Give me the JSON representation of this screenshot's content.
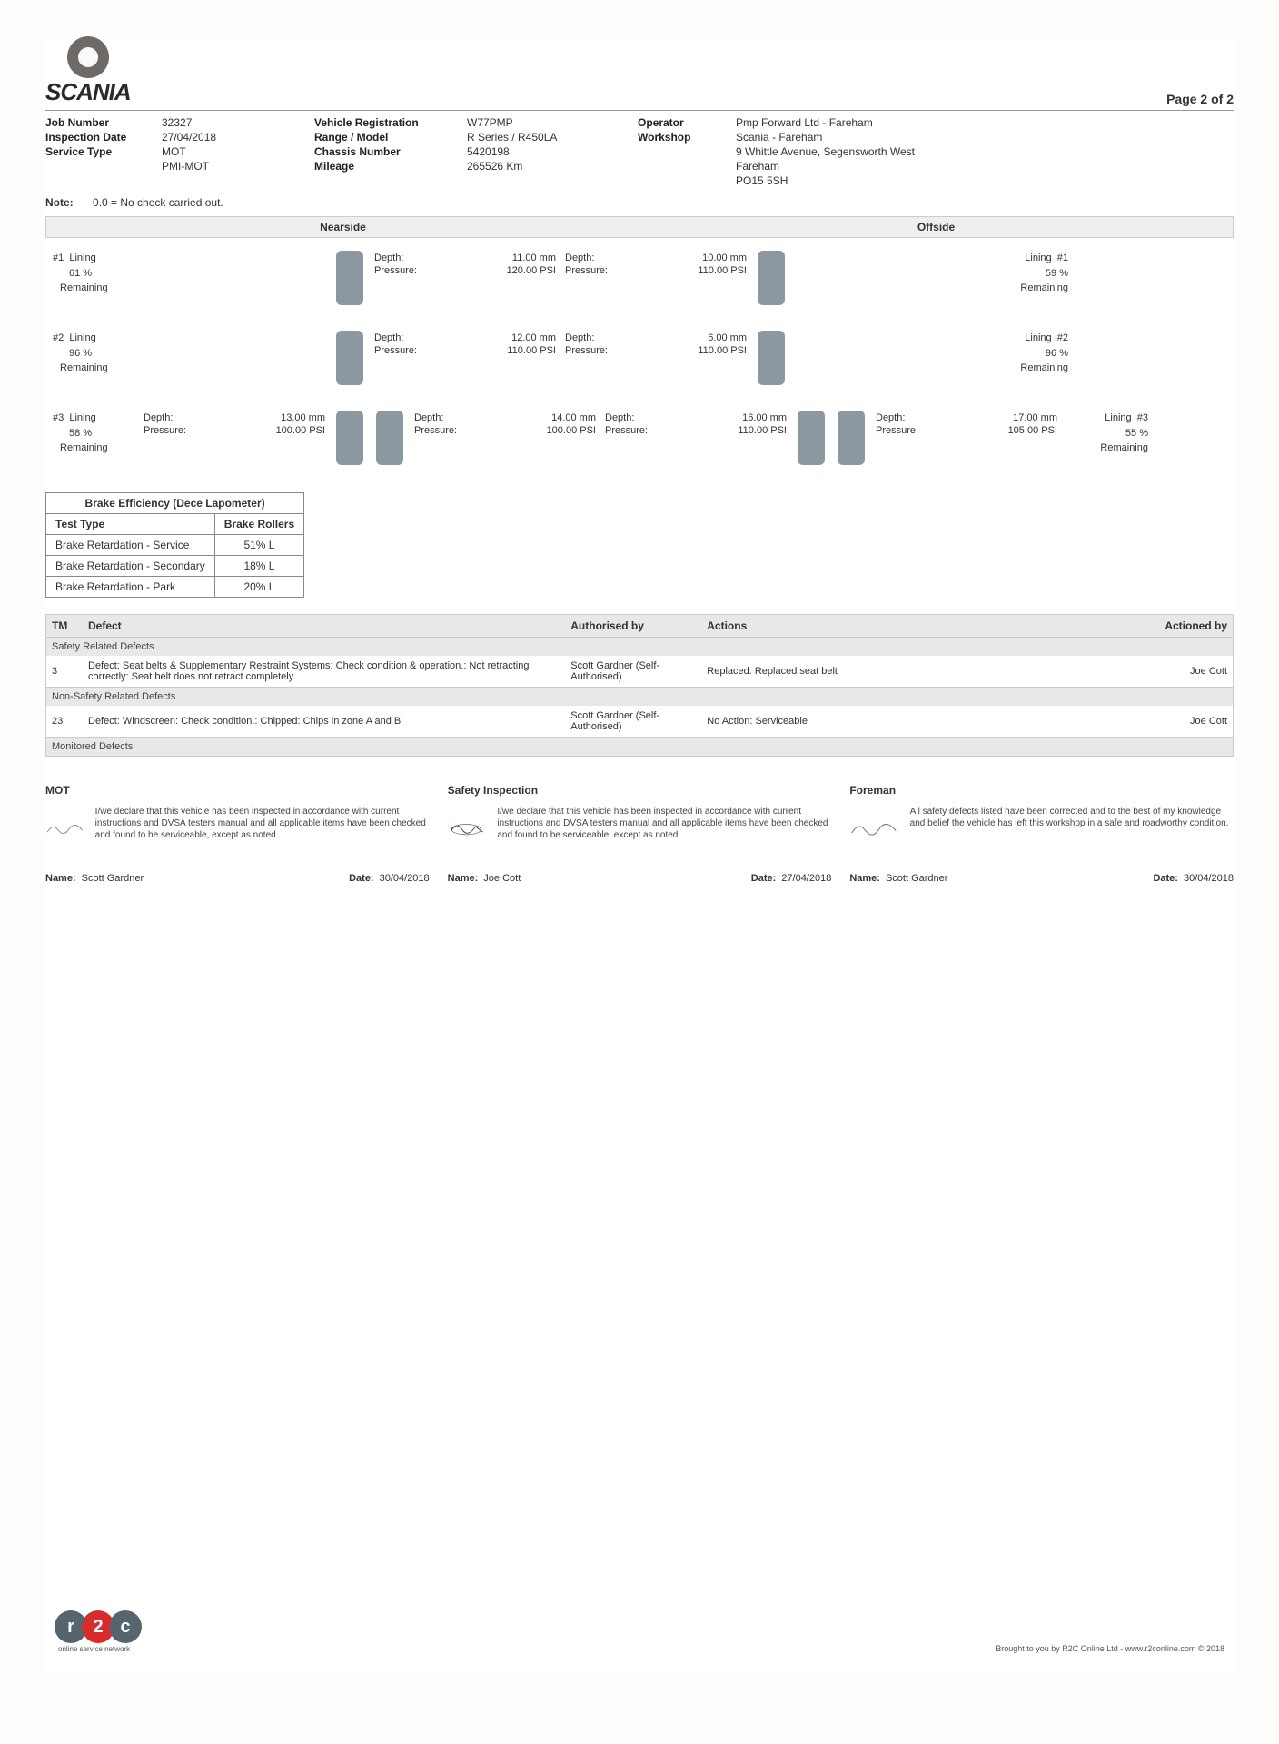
{
  "logo_text": "SCANIA",
  "page_info": "Page 2 of 2",
  "meta": {
    "job_number_label": "Job Number",
    "job_number": "32327",
    "vehicle_reg_label": "Vehicle Registration",
    "vehicle_reg": "W77PMP",
    "operator_label": "Operator",
    "operator": "Pmp Forward Ltd - Fareham",
    "inspection_date_label": "Inspection Date",
    "inspection_date": "27/04/2018",
    "range_model_label": "Range / Model",
    "range_model": "R Series / R450LA",
    "workshop_label": "Workshop",
    "workshop": "Scania - Fareham",
    "service_type_label": "Service Type",
    "service_type_1": "MOT",
    "service_type_2": "PMI-MOT",
    "chassis_label": "Chassis Number",
    "chassis": "5420198",
    "mileage_label": "Mileage",
    "mileage": "265526 Km",
    "address_1": "9 Whittle Avenue, Segensworth West",
    "address_2": "Fareham",
    "address_3": "PO15 5SH"
  },
  "note_label": "Note:",
  "note_text": "0.0 = No check carried out.",
  "side_labels": {
    "nearside": "Nearside",
    "offside": "Offside"
  },
  "depth_label": "Depth:",
  "pressure_label": "Pressure:",
  "lining_label": "Lining",
  "remaining_label": "Remaining",
  "axles": [
    {
      "id": "#1",
      "near_lining_pct": "61 %",
      "near_outer": null,
      "near_inner": {
        "depth": "11.00 mm",
        "pressure": "120.00 PSI"
      },
      "off_inner": {
        "depth": "10.00 mm",
        "pressure": "110.00 PSI"
      },
      "off_outer": null,
      "off_lining_pct": "59 %",
      "off_id": "#1"
    },
    {
      "id": "#2",
      "near_lining_pct": "96 %",
      "near_outer": null,
      "near_inner": {
        "depth": "12.00 mm",
        "pressure": "110.00 PSI"
      },
      "off_inner": {
        "depth": "6.00 mm",
        "pressure": "110.00 PSI"
      },
      "off_outer": null,
      "off_lining_pct": "96 %",
      "off_id": "#2"
    },
    {
      "id": "#3",
      "near_lining_pct": "58 %",
      "near_outer": {
        "depth": "13.00 mm",
        "pressure": "100.00 PSI"
      },
      "near_inner": {
        "depth": "14.00 mm",
        "pressure": "100.00 PSI"
      },
      "off_inner": {
        "depth": "16.00 mm",
        "pressure": "110.00 PSI"
      },
      "off_outer": {
        "depth": "17.00 mm",
        "pressure": "105.00 PSI"
      },
      "off_lining_pct": "55 %",
      "off_id": "#3"
    }
  ],
  "brake_table": {
    "title": "Brake Efficiency (Dece Lapometer)",
    "col1": "Test Type",
    "col2": "Brake Rollers",
    "rows": [
      {
        "type": "Brake Retardation - Service",
        "val": "51% L"
      },
      {
        "type": "Brake Retardation - Secondary",
        "val": "18% L"
      },
      {
        "type": "Brake Retardation - Park",
        "val": "20% L"
      }
    ]
  },
  "defects_header": {
    "tm": "TM",
    "defect": "Defect",
    "auth": "Authorised by",
    "actions": "Actions",
    "by": "Actioned by"
  },
  "safety_heading": "Safety Related Defects",
  "safety_defects": [
    {
      "tm": "3",
      "defect": "Defect: Seat belts & Supplementary Restraint Systems: Check condition & operation.: Not retracting correctly: Seat belt does not retract completely",
      "auth": "Scott Gardner (Self-Authorised)",
      "actions": "Replaced: Replaced seat belt",
      "by": "Joe Cott"
    }
  ],
  "nonsafety_heading": "Non-Safety Related Defects",
  "nonsafety_defects": [
    {
      "tm": "23",
      "defect": "Defect: Windscreen: Check condition.: Chipped: Chips in zone A and B",
      "auth": "Scott Gardner (Self-Authorised)",
      "actions": "No Action: Serviceable",
      "by": "Joe Cott"
    }
  ],
  "monitored_heading": "Monitored Defects",
  "signatures": {
    "mot": {
      "title": "MOT",
      "declaration": "I/we declare that this vehicle has been inspected in accordance with current instructions and DVSA testers manual and all applicable items have been checked and found to be serviceable, except as noted.",
      "name_label": "Name:",
      "name": "Scott Gardner",
      "date_label": "Date:",
      "date": "30/04/2018"
    },
    "safety": {
      "title": "Safety Inspection",
      "declaration": "I/we declare that this vehicle has been inspected in accordance with current instructions and DVSA testers manual and all applicable items have been checked and found to be serviceable, except as noted.",
      "name_label": "Name:",
      "name": "Joe Cott",
      "date_label": "Date:",
      "date": "27/04/2018"
    },
    "foreman": {
      "title": "Foreman",
      "declaration": "All safety defects listed have been corrected and to the best of my knowledge and belief the vehicle has left this workshop in a safe and roadworthy condition.",
      "name_label": "Name:",
      "name": "Scott Gardner",
      "date_label": "Date:",
      "date": "30/04/2018"
    }
  },
  "footer": {
    "r2c_text": "r2c",
    "r2c_tag": "online service network",
    "text": "Brought to you by R2C Online Ltd - www.r2conline.com © 2018"
  },
  "colors": {
    "tyre": "#8b98a0",
    "section_bg": "#e8e8e8",
    "border": "#cccccc",
    "r2c_grey": "#56646e",
    "r2c_red": "#d82c2c"
  }
}
